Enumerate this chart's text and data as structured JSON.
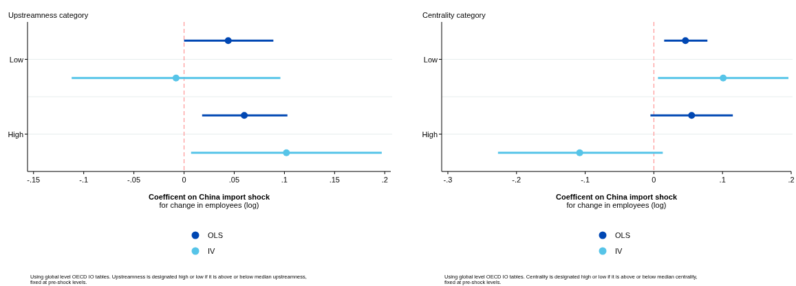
{
  "chart_data": [
    {
      "type": "scatter",
      "orientation": "horizontal",
      "title": "Upstreamness category",
      "xlabel": "Coefficent on China import shock\nfor change in employees (log)",
      "categories": [
        "Low",
        "High"
      ],
      "xlim": [
        -0.156,
        0.206
      ],
      "xticks": [
        {
          "value": -0.15,
          "label": "-.15"
        },
        {
          "value": -0.1,
          "label": "-.1"
        },
        {
          "value": -0.05,
          "label": "-.05"
        },
        0,
        {
          "value": 0.05,
          "label": ".05"
        },
        {
          "value": 0.1,
          "label": ".1"
        },
        {
          "value": 0.15,
          "label": ".15"
        },
        {
          "value": 0.2,
          "label": ".2"
        }
      ],
      "grid": "y",
      "legend": "bottom",
      "marker": "circle",
      "ref_lines": [
        {
          "axis": "x",
          "value": 0,
          "color": "#ff8080",
          "line_style": "dashed"
        }
      ],
      "series": [
        {
          "name": "OLS",
          "color": "#0047b3",
          "values": [
            0.044,
            0.06
          ],
          "errors": [
            [
              0,
              0.089
            ],
            [
              0.018,
              0.103
            ]
          ]
        },
        {
          "name": "IV",
          "color": "#56c4e8",
          "values": [
            -0.008,
            0.102
          ],
          "errors": [
            [
              -0.112,
              0.096
            ],
            [
              0.007,
              0.197
            ]
          ]
        }
      ],
      "annotations": [
        "Using global level OECD IO tables. Upstreamness is designated high or low if it is above or below median upstreamness,\nfixed at pre-shock levels."
      ]
    },
    {
      "type": "scatter",
      "orientation": "horizontal",
      "title": "Centrality category",
      "xlabel": "Coefficent on China import shock\nfor change in employees (log)",
      "categories": [
        "Low",
        "High"
      ],
      "xlim": [
        -0.309,
        0.2
      ],
      "xticks": [
        {
          "value": -0.3,
          "label": "-.3"
        },
        {
          "value": -0.2,
          "label": "-.2"
        },
        {
          "value": -0.1,
          "label": "-.1"
        },
        0,
        {
          "value": 0.1,
          "label": ".1"
        },
        {
          "value": 0.2,
          "label": ".2"
        }
      ],
      "grid": "y",
      "legend": "bottom",
      "marker": "circle",
      "ref_lines": [
        {
          "axis": "x",
          "value": 0,
          "color": "#ff8080",
          "line_style": "dashed"
        }
      ],
      "series": [
        {
          "name": "OLS",
          "color": "#0047b3",
          "values": [
            0.046,
            0.055
          ],
          "errors": [
            [
              0.015,
              0.078
            ],
            [
              -0.005,
              0.115
            ]
          ]
        },
        {
          "name": "IV",
          "color": "#56c4e8",
          "values": [
            0.101,
            -0.108
          ],
          "errors": [
            [
              0.006,
              0.196
            ],
            [
              -0.227,
              0.013
            ]
          ]
        }
      ],
      "annotations": [
        "Using global level OECD IO tables. Centrality is designated high or low if it is above or below median centrality,\nfixed at pre-shock levels."
      ]
    }
  ]
}
